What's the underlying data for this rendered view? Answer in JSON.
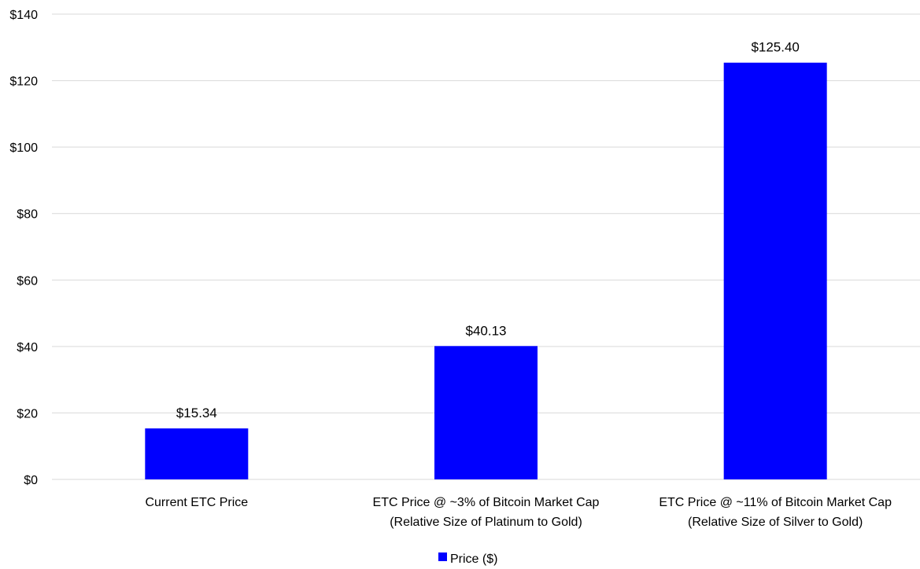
{
  "chart_data": {
    "type": "bar",
    "categories": [
      [
        "Current ETC Price"
      ],
      [
        "ETC Price @ ~3% of Bitcoin Market Cap",
        "(Relative Size of Platinum to Gold)"
      ],
      [
        "ETC Price @ ~11% of Bitcoin Market Cap",
        "(Relative Size of Silver to Gold)"
      ]
    ],
    "series": [
      {
        "name": "Price  ($)",
        "values": [
          15.34,
          40.13,
          125.4
        ],
        "color": "#0000ff"
      }
    ],
    "data_labels": [
      "$15.34",
      "$40.13",
      "$125.40"
    ],
    "y_ticks": [
      {
        "value": 0,
        "label": "$0"
      },
      {
        "value": 20,
        "label": "$20"
      },
      {
        "value": 40,
        "label": "$40"
      },
      {
        "value": 60,
        "label": "$60"
      },
      {
        "value": 80,
        "label": "$80"
      },
      {
        "value": 100,
        "label": "$100"
      },
      {
        "value": 120,
        "label": "$120"
      },
      {
        "value": 140,
        "label": "$140"
      }
    ],
    "ylim": [
      0,
      140
    ],
    "grid": true,
    "legend_position": "bottom-center",
    "title": "",
    "xlabel": "",
    "ylabel": ""
  }
}
